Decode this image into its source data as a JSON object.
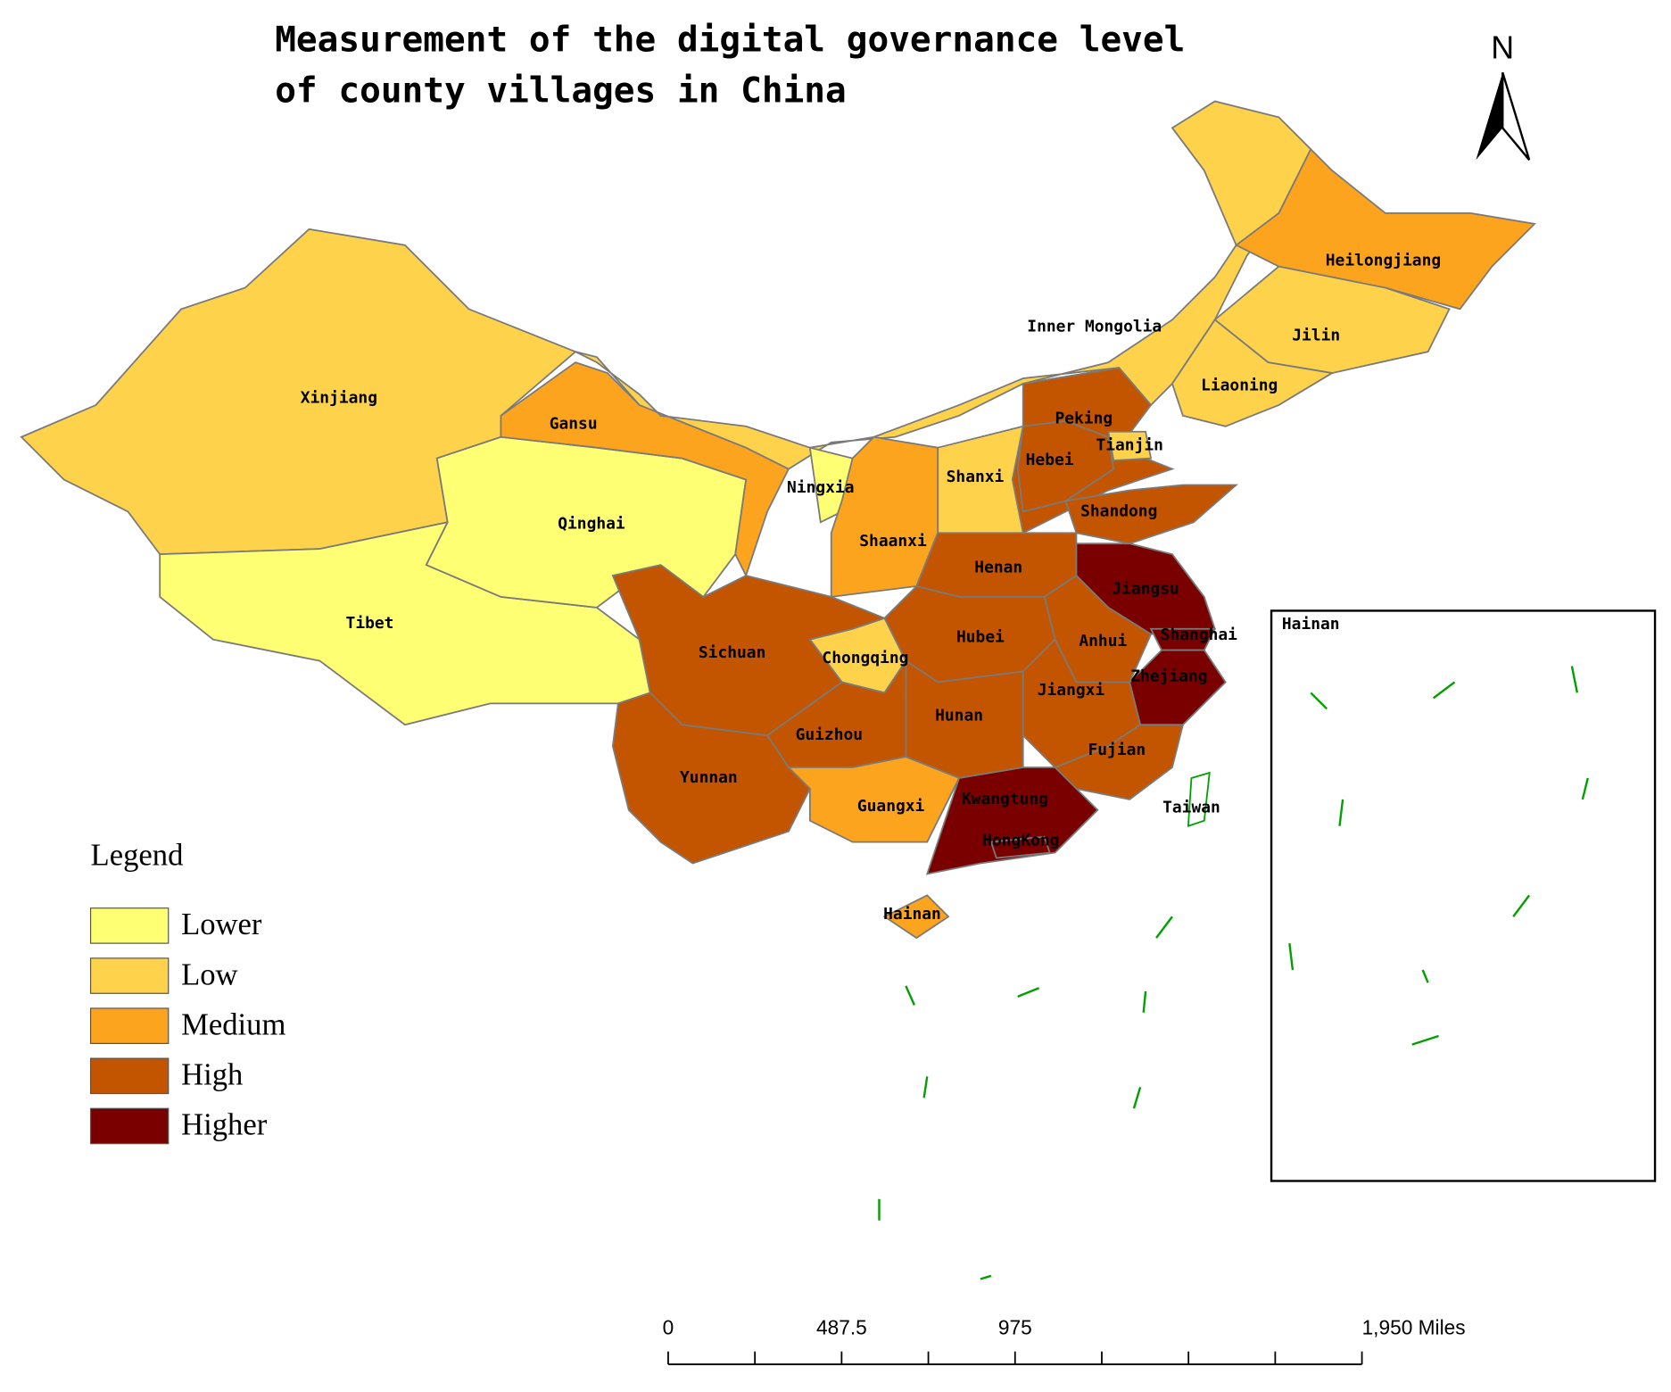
{
  "title_lines": [
    "Measurement of the digital governance level",
    "of county villages in China"
  ],
  "north": "N",
  "legend": {
    "title": "Legend",
    "items": [
      {
        "label": "Lower",
        "color": "#ffff73"
      },
      {
        "label": "Low",
        "color": "#ffd24c"
      },
      {
        "label": "Medium",
        "color": "#fda41f"
      },
      {
        "label": "High",
        "color": "#c45500"
      },
      {
        "label": "Higher",
        "color": "#7a0000"
      }
    ]
  },
  "provinces": [
    {
      "name": "Xinjiang",
      "level": "Low"
    },
    {
      "name": "Tibet",
      "level": "Lower"
    },
    {
      "name": "Qinghai",
      "level": "Lower"
    },
    {
      "name": "Gansu",
      "level": "Medium"
    },
    {
      "name": "Inner Mongolia",
      "level": "Low"
    },
    {
      "name": "Heilongjiang",
      "level": "Medium"
    },
    {
      "name": "Jilin",
      "level": "Low"
    },
    {
      "name": "Liaoning",
      "level": "Low"
    },
    {
      "name": "Peking",
      "level": "High"
    },
    {
      "name": "Tianjin",
      "level": "Low"
    },
    {
      "name": "Hebei",
      "level": "High"
    },
    {
      "name": "Shanxi",
      "level": "Low"
    },
    {
      "name": "Ningxia",
      "level": "Lower"
    },
    {
      "name": "Shaanxi",
      "level": "Medium"
    },
    {
      "name": "Shandong",
      "level": "High"
    },
    {
      "name": "Henan",
      "level": "High"
    },
    {
      "name": "Jiangsu",
      "level": "Higher"
    },
    {
      "name": "Shanghai",
      "level": "Higher"
    },
    {
      "name": "Anhui",
      "level": "High"
    },
    {
      "name": "Hubei",
      "level": "High"
    },
    {
      "name": "Chongqing",
      "level": "Low"
    },
    {
      "name": "Sichuan",
      "level": "High"
    },
    {
      "name": "Zhejiang",
      "level": "Higher"
    },
    {
      "name": "Jiangxi",
      "level": "High"
    },
    {
      "name": "Hunan",
      "level": "High"
    },
    {
      "name": "Guizhou",
      "level": "High"
    },
    {
      "name": "Fujian",
      "level": "High"
    },
    {
      "name": "Yunnan",
      "level": "High"
    },
    {
      "name": "Guangxi",
      "level": "Medium"
    },
    {
      "name": "Kwangtung",
      "level": "Higher"
    },
    {
      "name": "HongKong",
      "level": "Higher"
    },
    {
      "name": "Taiwan"
    },
    {
      "name": "Hainan",
      "level": "Medium"
    }
  ],
  "inset_label": "Hainan",
  "scale_bar": [
    "0",
    "487.5",
    "975",
    "1,950 Miles"
  ]
}
